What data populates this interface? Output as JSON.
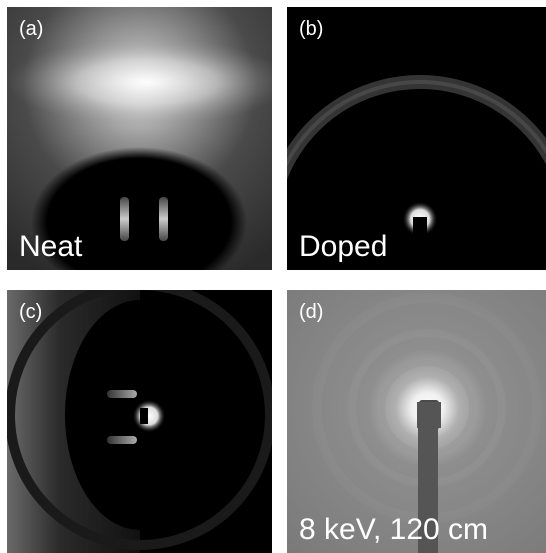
{
  "panels": [
    {
      "id": "a",
      "letter": "(a)",
      "caption": "Neat"
    },
    {
      "id": "b",
      "letter": "(b)",
      "caption": "Doped"
    },
    {
      "id": "c",
      "letter": "(c)",
      "caption": ""
    },
    {
      "id": "d",
      "letter": "(d)",
      "caption": "8 keV, 120 cm"
    }
  ],
  "colors": {
    "background": "#000000",
    "halo": "#ffffff",
    "panel_d_background": "#8a8a8a",
    "text": "#ffffff"
  }
}
